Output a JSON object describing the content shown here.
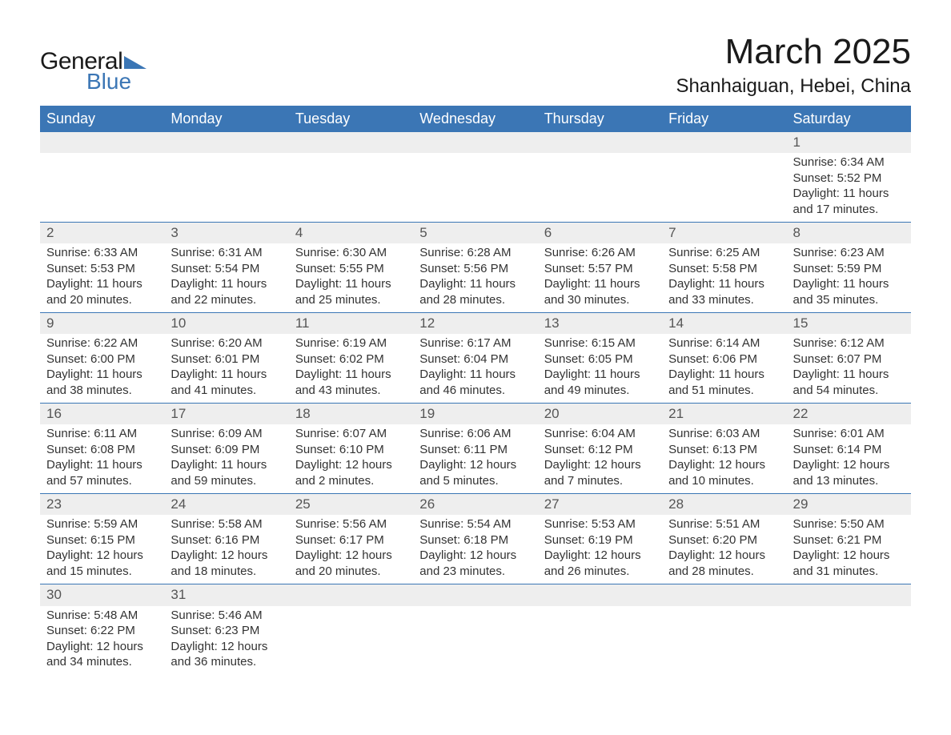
{
  "logo": {
    "text_general": "General",
    "text_blue": "Blue",
    "flag_color": "#3b76b5"
  },
  "title": {
    "month": "March 2025",
    "location": "Shanhaiguan, Hebei, China"
  },
  "calendar": {
    "header_bg": "#3b76b5",
    "header_text_color": "#ffffff",
    "daynum_bg": "#eeeeee",
    "border_color": "#3b76b5",
    "text_color": "#333333",
    "day_headers": [
      "Sunday",
      "Monday",
      "Tuesday",
      "Wednesday",
      "Thursday",
      "Friday",
      "Saturday"
    ],
    "weeks": [
      [
        null,
        null,
        null,
        null,
        null,
        null,
        {
          "num": "1",
          "sunrise": "Sunrise: 6:34 AM",
          "sunset": "Sunset: 5:52 PM",
          "daylight1": "Daylight: 11 hours",
          "daylight2": "and 17 minutes."
        }
      ],
      [
        {
          "num": "2",
          "sunrise": "Sunrise: 6:33 AM",
          "sunset": "Sunset: 5:53 PM",
          "daylight1": "Daylight: 11 hours",
          "daylight2": "and 20 minutes."
        },
        {
          "num": "3",
          "sunrise": "Sunrise: 6:31 AM",
          "sunset": "Sunset: 5:54 PM",
          "daylight1": "Daylight: 11 hours",
          "daylight2": "and 22 minutes."
        },
        {
          "num": "4",
          "sunrise": "Sunrise: 6:30 AM",
          "sunset": "Sunset: 5:55 PM",
          "daylight1": "Daylight: 11 hours",
          "daylight2": "and 25 minutes."
        },
        {
          "num": "5",
          "sunrise": "Sunrise: 6:28 AM",
          "sunset": "Sunset: 5:56 PM",
          "daylight1": "Daylight: 11 hours",
          "daylight2": "and 28 minutes."
        },
        {
          "num": "6",
          "sunrise": "Sunrise: 6:26 AM",
          "sunset": "Sunset: 5:57 PM",
          "daylight1": "Daylight: 11 hours",
          "daylight2": "and 30 minutes."
        },
        {
          "num": "7",
          "sunrise": "Sunrise: 6:25 AM",
          "sunset": "Sunset: 5:58 PM",
          "daylight1": "Daylight: 11 hours",
          "daylight2": "and 33 minutes."
        },
        {
          "num": "8",
          "sunrise": "Sunrise: 6:23 AM",
          "sunset": "Sunset: 5:59 PM",
          "daylight1": "Daylight: 11 hours",
          "daylight2": "and 35 minutes."
        }
      ],
      [
        {
          "num": "9",
          "sunrise": "Sunrise: 6:22 AM",
          "sunset": "Sunset: 6:00 PM",
          "daylight1": "Daylight: 11 hours",
          "daylight2": "and 38 minutes."
        },
        {
          "num": "10",
          "sunrise": "Sunrise: 6:20 AM",
          "sunset": "Sunset: 6:01 PM",
          "daylight1": "Daylight: 11 hours",
          "daylight2": "and 41 minutes."
        },
        {
          "num": "11",
          "sunrise": "Sunrise: 6:19 AM",
          "sunset": "Sunset: 6:02 PM",
          "daylight1": "Daylight: 11 hours",
          "daylight2": "and 43 minutes."
        },
        {
          "num": "12",
          "sunrise": "Sunrise: 6:17 AM",
          "sunset": "Sunset: 6:04 PM",
          "daylight1": "Daylight: 11 hours",
          "daylight2": "and 46 minutes."
        },
        {
          "num": "13",
          "sunrise": "Sunrise: 6:15 AM",
          "sunset": "Sunset: 6:05 PM",
          "daylight1": "Daylight: 11 hours",
          "daylight2": "and 49 minutes."
        },
        {
          "num": "14",
          "sunrise": "Sunrise: 6:14 AM",
          "sunset": "Sunset: 6:06 PM",
          "daylight1": "Daylight: 11 hours",
          "daylight2": "and 51 minutes."
        },
        {
          "num": "15",
          "sunrise": "Sunrise: 6:12 AM",
          "sunset": "Sunset: 6:07 PM",
          "daylight1": "Daylight: 11 hours",
          "daylight2": "and 54 minutes."
        }
      ],
      [
        {
          "num": "16",
          "sunrise": "Sunrise: 6:11 AM",
          "sunset": "Sunset: 6:08 PM",
          "daylight1": "Daylight: 11 hours",
          "daylight2": "and 57 minutes."
        },
        {
          "num": "17",
          "sunrise": "Sunrise: 6:09 AM",
          "sunset": "Sunset: 6:09 PM",
          "daylight1": "Daylight: 11 hours",
          "daylight2": "and 59 minutes."
        },
        {
          "num": "18",
          "sunrise": "Sunrise: 6:07 AM",
          "sunset": "Sunset: 6:10 PM",
          "daylight1": "Daylight: 12 hours",
          "daylight2": "and 2 minutes."
        },
        {
          "num": "19",
          "sunrise": "Sunrise: 6:06 AM",
          "sunset": "Sunset: 6:11 PM",
          "daylight1": "Daylight: 12 hours",
          "daylight2": "and 5 minutes."
        },
        {
          "num": "20",
          "sunrise": "Sunrise: 6:04 AM",
          "sunset": "Sunset: 6:12 PM",
          "daylight1": "Daylight: 12 hours",
          "daylight2": "and 7 minutes."
        },
        {
          "num": "21",
          "sunrise": "Sunrise: 6:03 AM",
          "sunset": "Sunset: 6:13 PM",
          "daylight1": "Daylight: 12 hours",
          "daylight2": "and 10 minutes."
        },
        {
          "num": "22",
          "sunrise": "Sunrise: 6:01 AM",
          "sunset": "Sunset: 6:14 PM",
          "daylight1": "Daylight: 12 hours",
          "daylight2": "and 13 minutes."
        }
      ],
      [
        {
          "num": "23",
          "sunrise": "Sunrise: 5:59 AM",
          "sunset": "Sunset: 6:15 PM",
          "daylight1": "Daylight: 12 hours",
          "daylight2": "and 15 minutes."
        },
        {
          "num": "24",
          "sunrise": "Sunrise: 5:58 AM",
          "sunset": "Sunset: 6:16 PM",
          "daylight1": "Daylight: 12 hours",
          "daylight2": "and 18 minutes."
        },
        {
          "num": "25",
          "sunrise": "Sunrise: 5:56 AM",
          "sunset": "Sunset: 6:17 PM",
          "daylight1": "Daylight: 12 hours",
          "daylight2": "and 20 minutes."
        },
        {
          "num": "26",
          "sunrise": "Sunrise: 5:54 AM",
          "sunset": "Sunset: 6:18 PM",
          "daylight1": "Daylight: 12 hours",
          "daylight2": "and 23 minutes."
        },
        {
          "num": "27",
          "sunrise": "Sunrise: 5:53 AM",
          "sunset": "Sunset: 6:19 PM",
          "daylight1": "Daylight: 12 hours",
          "daylight2": "and 26 minutes."
        },
        {
          "num": "28",
          "sunrise": "Sunrise: 5:51 AM",
          "sunset": "Sunset: 6:20 PM",
          "daylight1": "Daylight: 12 hours",
          "daylight2": "and 28 minutes."
        },
        {
          "num": "29",
          "sunrise": "Sunrise: 5:50 AM",
          "sunset": "Sunset: 6:21 PM",
          "daylight1": "Daylight: 12 hours",
          "daylight2": "and 31 minutes."
        }
      ],
      [
        {
          "num": "30",
          "sunrise": "Sunrise: 5:48 AM",
          "sunset": "Sunset: 6:22 PM",
          "daylight1": "Daylight: 12 hours",
          "daylight2": "and 34 minutes."
        },
        {
          "num": "31",
          "sunrise": "Sunrise: 5:46 AM",
          "sunset": "Sunset: 6:23 PM",
          "daylight1": "Daylight: 12 hours",
          "daylight2": "and 36 minutes."
        },
        null,
        null,
        null,
        null,
        null
      ]
    ]
  }
}
